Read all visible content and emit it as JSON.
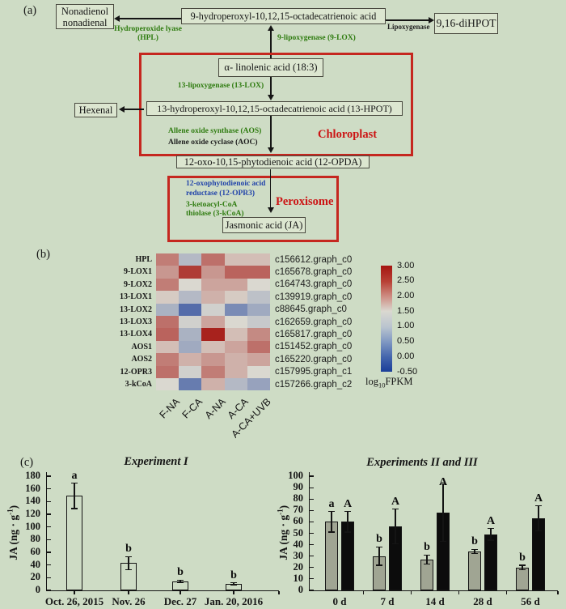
{
  "colors": {
    "background": "#cedcc5",
    "node_fill": "#dce6d0",
    "enzyme_green": "#2f7c10",
    "enzyme_blue": "#2244aa",
    "compartment_red": "#cc1414",
    "red_box_border": "#c5271f",
    "heat_red_max": "#a41510",
    "heat_neutral": "#dad8d0",
    "heat_blue_min": "#1a3e99",
    "gray_bar": "#a0a593",
    "black_bar": "#0c0c0c",
    "open_bar": "#cedcc5"
  },
  "panel_a": {
    "label": "(a)",
    "nodes": {
      "nonadienol": {
        "line1": "Nonadienol",
        "line2": "nonadienal"
      },
      "hydroperoxyl9": "9-hydroperoxyl-10,12,15-octadecatrienoic acid",
      "dihpot": "9,16-diHPOT",
      "linolenic": "α- linolenic acid (18:3)",
      "hexenal": "Hexenal",
      "hpot13": "13-hydroperoxyl-10,12,15-octadecatrienoic acid (13-HPOT)",
      "opda": "12-oxo-10,15-phytodienoic acid (12-OPDA)",
      "ja": "Jasmonic acid (JA)"
    },
    "enzymes": {
      "hpl": {
        "line1": "Hydroperoxide lyase",
        "line2": "(HPL)"
      },
      "lipoxygenase": "Lipoxygenase",
      "lox9": "9-lipoxygenase (9-LOX)",
      "lox13": "13-lipoxygenase (13-LOX)",
      "aos": "Allene oxide synthase (AOS)",
      "aoc": "Allene oxide cyclase (AOC)",
      "opr3": {
        "line1": "12-oxophytodienoic acid",
        "line2": "reductase (12-OPR3)"
      },
      "kcoa": {
        "line1": "3-ketoacyl-CoA",
        "line2": "thiolase (3-kCoA)"
      }
    },
    "compartments": {
      "chloroplast": "Chloroplast",
      "peroxisome": "Peroxisome"
    }
  },
  "panel_b": {
    "label": "(b)"
  },
  "panel_c": {
    "label": "(c)"
  },
  "chart_data": [
    {
      "id": "expression-heatmap",
      "type": "heatmap",
      "rows": [
        "HPL",
        "9-LOX1",
        "9-LOX2",
        "13-LOX1",
        "13-LOX2",
        "13-LOX3",
        "13-LOX4",
        "AOS1",
        "AOS2",
        "12-OPR3",
        "3-kCoA"
      ],
      "row_ids": [
        "c156612.graph_c0",
        "c165678.graph_c0",
        "c164743.graph_c0",
        "c139919.graph_c0",
        "c88645.graph_c0",
        "c162659.graph_c0",
        "c165817.graph_c0",
        "c151452.graph_c0",
        "c165220.graph_c0",
        "c157995.graph_c1",
        "c157266.graph_c2"
      ],
      "columns": [
        "F-NA",
        "F-CA",
        "A-NA",
        "A-CA",
        "A-CA+UVB"
      ],
      "values": [
        [
          2.2,
          1.1,
          2.3,
          1.7,
          1.7
        ],
        [
          2.0,
          2.7,
          2.0,
          2.4,
          2.4
        ],
        [
          2.2,
          1.5,
          1.9,
          1.9,
          1.5
        ],
        [
          1.6,
          1.1,
          1.8,
          1.6,
          1.2
        ],
        [
          1.0,
          0.1,
          1.4,
          0.5,
          0.9
        ],
        [
          2.3,
          1.4,
          1.9,
          1.5,
          1.3
        ],
        [
          2.4,
          1.0,
          2.9,
          1.7,
          2.1
        ],
        [
          1.7,
          0.9,
          1.7,
          1.9,
          2.3
        ],
        [
          2.2,
          1.8,
          2.0,
          1.8,
          1.9
        ],
        [
          2.3,
          1.4,
          2.2,
          1.8,
          1.5
        ],
        [
          1.5,
          0.3,
          1.8,
          1.1,
          0.8
        ]
      ],
      "scale": {
        "min": -0.5,
        "mid": 1.5,
        "max": 3.0
      },
      "colorbar_ticks": [
        "3.00",
        "2.50",
        "2.00",
        "1.50",
        "1.00",
        "0.50",
        "0.00",
        "-0.50"
      ],
      "colorbar_label": {
        "prefix": "log",
        "sub": "10",
        "suffix": "FPKM"
      }
    },
    {
      "id": "experiment-1",
      "type": "bar",
      "title": "Experiment I",
      "ylabel": {
        "prefix": "JA (ng · g",
        "sup": "-1",
        "suffix": ")"
      },
      "ylim": [
        0,
        180
      ],
      "ystep": 20,
      "grid": false,
      "categories": [
        "Oct. 26, 2015",
        "Nov. 26",
        "Dec. 27",
        "Jan. 20, 2016"
      ],
      "values": [
        149,
        43,
        14,
        10
      ],
      "errors": [
        20,
        10,
        2,
        2
      ],
      "letters": [
        "a",
        "b",
        "b",
        "b"
      ]
    },
    {
      "id": "experiments-2-3",
      "type": "bar-grouped",
      "title": "Experiments II and III",
      "ylabel": {
        "prefix": "JA (ng · g",
        "sup": "-1",
        "suffix": ")"
      },
      "ylim": [
        0,
        100
      ],
      "ystep": 10,
      "grid": false,
      "categories": [
        "0 d",
        "7 d",
        "14 d",
        "28 d",
        "56 d"
      ],
      "series": [
        {
          "name": "gray",
          "values": [
            60,
            30,
            27,
            34,
            20
          ],
          "errors": [
            9,
            8,
            4,
            2,
            2
          ],
          "letters": [
            "a",
            "b",
            "b",
            "b",
            "b"
          ],
          "color": "#a0a593"
        },
        {
          "name": "black",
          "values": [
            60,
            56,
            68,
            49,
            63
          ],
          "errors": [
            9,
            15,
            25,
            5,
            11
          ],
          "letters": [
            "A",
            "A",
            "A",
            "A",
            "A"
          ],
          "color": "#0c0c0c"
        }
      ]
    }
  ]
}
